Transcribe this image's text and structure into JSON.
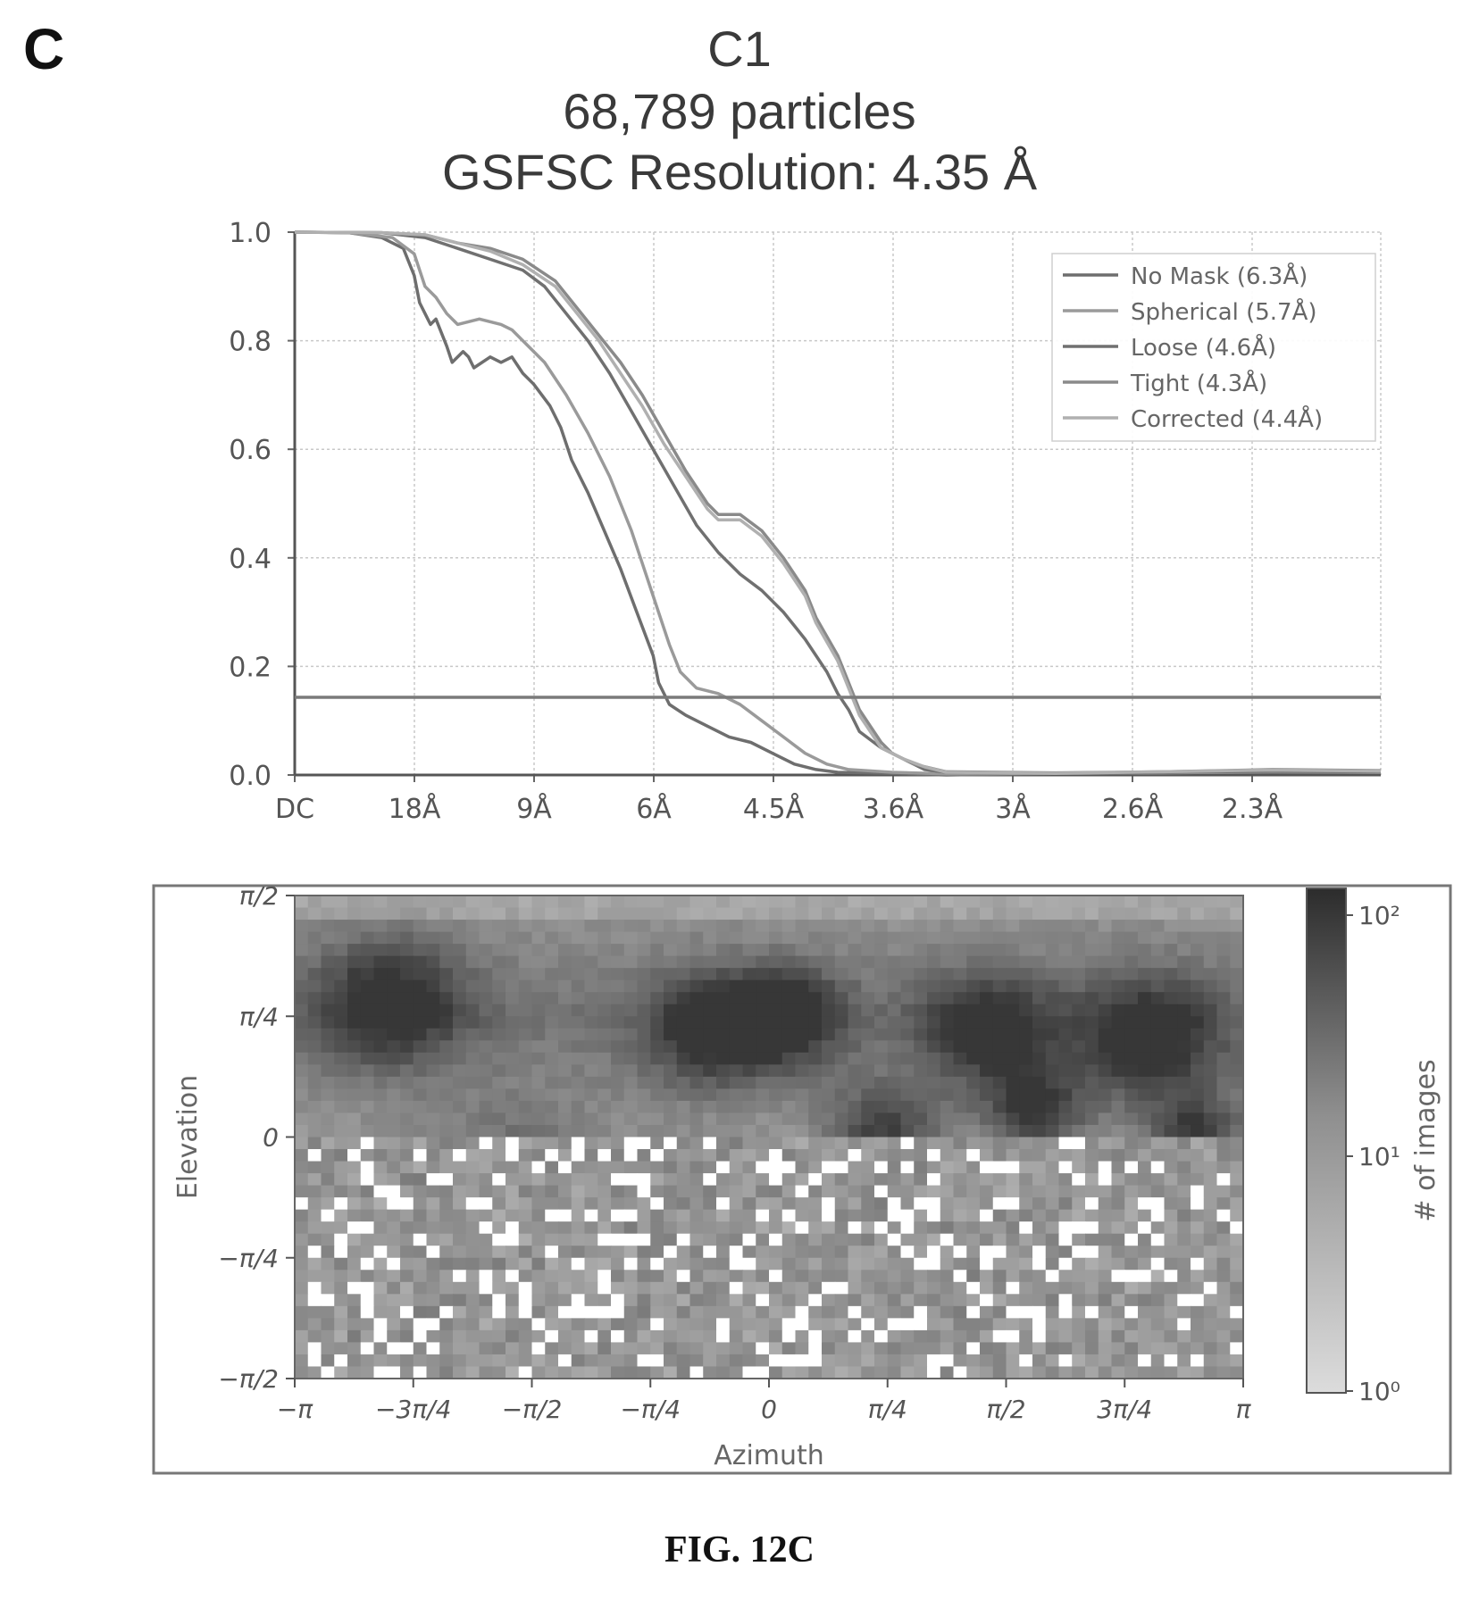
{
  "panel_letter": "C",
  "title_lines": [
    "C1",
    "68,789 particles",
    "GSFSC Resolution: 4.35 Å"
  ],
  "figure_label": "FIG. 12C",
  "chart_data": [
    {
      "type": "line",
      "ylim": [
        0,
        1.0
      ],
      "yticks": [
        0.0,
        0.2,
        0.4,
        0.6,
        0.8,
        1.0
      ],
      "ytick_labels": [
        "0.0",
        "0.2",
        "0.4",
        "0.6",
        "0.8",
        "1.0"
      ],
      "x_tick_labels": [
        "DC",
        "18Å",
        "9Å",
        "6Å",
        "4.5Å",
        "3.6Å",
        "3Å",
        "2.6Å",
        "2.3Å"
      ],
      "xlim": [
        0,
        1
      ],
      "grid": true,
      "legend_position": "top-right",
      "threshold": 0.143,
      "series": [
        {
          "name": "No Mask (6.3Å)",
          "color": "#6e6e6e",
          "points": [
            [
              0,
              1.0
            ],
            [
              0.05,
              0.999
            ],
            [
              0.08,
              0.99
            ],
            [
              0.1,
              0.97
            ],
            [
              0.11,
              0.92
            ],
            [
              0.115,
              0.87
            ],
            [
              0.12,
              0.85
            ],
            [
              0.125,
              0.83
            ],
            [
              0.13,
              0.84
            ],
            [
              0.14,
              0.79
            ],
            [
              0.145,
              0.76
            ],
            [
              0.155,
              0.78
            ],
            [
              0.16,
              0.77
            ],
            [
              0.165,
              0.75
            ],
            [
              0.18,
              0.77
            ],
            [
              0.19,
              0.76
            ],
            [
              0.2,
              0.77
            ],
            [
              0.21,
              0.74
            ],
            [
              0.22,
              0.72
            ],
            [
              0.235,
              0.68
            ],
            [
              0.245,
              0.64
            ],
            [
              0.255,
              0.58
            ],
            [
              0.27,
              0.52
            ],
            [
              0.285,
              0.45
            ],
            [
              0.3,
              0.38
            ],
            [
              0.315,
              0.3
            ],
            [
              0.33,
              0.22
            ],
            [
              0.335,
              0.17
            ],
            [
              0.345,
              0.13
            ],
            [
              0.36,
              0.11
            ],
            [
              0.38,
              0.09
            ],
            [
              0.4,
              0.07
            ],
            [
              0.42,
              0.06
            ],
            [
              0.44,
              0.04
            ],
            [
              0.46,
              0.02
            ],
            [
              0.48,
              0.01
            ],
            [
              0.5,
              0.005
            ],
            [
              0.55,
              0.003
            ],
            [
              0.6,
              0.0
            ],
            [
              0.7,
              0.003
            ],
            [
              0.8,
              0.004
            ],
            [
              0.9,
              0.005
            ],
            [
              1.0,
              0.005
            ]
          ]
        },
        {
          "name": "Spherical (5.7Å)",
          "color": "#9a9a9a",
          "points": [
            [
              0,
              1.0
            ],
            [
              0.05,
              0.999
            ],
            [
              0.09,
              0.99
            ],
            [
              0.11,
              0.96
            ],
            [
              0.12,
              0.9
            ],
            [
              0.13,
              0.88
            ],
            [
              0.14,
              0.85
            ],
            [
              0.15,
              0.83
            ],
            [
              0.17,
              0.84
            ],
            [
              0.19,
              0.83
            ],
            [
              0.2,
              0.82
            ],
            [
              0.21,
              0.8
            ],
            [
              0.23,
              0.76
            ],
            [
              0.25,
              0.7
            ],
            [
              0.27,
              0.63
            ],
            [
              0.29,
              0.55
            ],
            [
              0.31,
              0.45
            ],
            [
              0.33,
              0.33
            ],
            [
              0.345,
              0.24
            ],
            [
              0.355,
              0.19
            ],
            [
              0.37,
              0.16
            ],
            [
              0.39,
              0.15
            ],
            [
              0.41,
              0.13
            ],
            [
              0.43,
              0.1
            ],
            [
              0.45,
              0.07
            ],
            [
              0.47,
              0.04
            ],
            [
              0.49,
              0.02
            ],
            [
              0.51,
              0.01
            ],
            [
              0.55,
              0.005
            ],
            [
              0.6,
              0.002
            ],
            [
              0.7,
              0.003
            ],
            [
              0.8,
              0.004
            ],
            [
              0.9,
              0.006
            ],
            [
              1.0,
              0.005
            ]
          ]
        },
        {
          "name": "Loose (4.6Å)",
          "color": "#707070",
          "points": [
            [
              0,
              1.0
            ],
            [
              0.08,
              0.999
            ],
            [
              0.12,
              0.99
            ],
            [
              0.15,
              0.97
            ],
            [
              0.18,
              0.95
            ],
            [
              0.21,
              0.93
            ],
            [
              0.23,
              0.9
            ],
            [
              0.25,
              0.85
            ],
            [
              0.27,
              0.8
            ],
            [
              0.29,
              0.74
            ],
            [
              0.31,
              0.67
            ],
            [
              0.33,
              0.6
            ],
            [
              0.35,
              0.53
            ],
            [
              0.37,
              0.46
            ],
            [
              0.39,
              0.41
            ],
            [
              0.41,
              0.37
            ],
            [
              0.43,
              0.34
            ],
            [
              0.45,
              0.3
            ],
            [
              0.47,
              0.25
            ],
            [
              0.49,
              0.19
            ],
            [
              0.5,
              0.15
            ],
            [
              0.51,
              0.12
            ],
            [
              0.52,
              0.08
            ],
            [
              0.54,
              0.05
            ],
            [
              0.56,
              0.03
            ],
            [
              0.58,
              0.01
            ],
            [
              0.6,
              0.005
            ],
            [
              0.7,
              0.003
            ],
            [
              0.8,
              0.005
            ],
            [
              0.9,
              0.007
            ],
            [
              1.0,
              0.006
            ]
          ]
        },
        {
          "name": "Tight (4.3Å)",
          "color": "#8a8a8a",
          "points": [
            [
              0,
              1.0
            ],
            [
              0.08,
              0.999
            ],
            [
              0.12,
              0.995
            ],
            [
              0.15,
              0.98
            ],
            [
              0.18,
              0.97
            ],
            [
              0.21,
              0.95
            ],
            [
              0.24,
              0.91
            ],
            [
              0.26,
              0.86
            ],
            [
              0.28,
              0.81
            ],
            [
              0.3,
              0.76
            ],
            [
              0.32,
              0.7
            ],
            [
              0.34,
              0.63
            ],
            [
              0.36,
              0.56
            ],
            [
              0.38,
              0.5
            ],
            [
              0.39,
              0.48
            ],
            [
              0.41,
              0.48
            ],
            [
              0.43,
              0.45
            ],
            [
              0.45,
              0.4
            ],
            [
              0.47,
              0.34
            ],
            [
              0.48,
              0.29
            ],
            [
              0.5,
              0.22
            ],
            [
              0.51,
              0.17
            ],
            [
              0.52,
              0.12
            ],
            [
              0.53,
              0.09
            ],
            [
              0.54,
              0.06
            ],
            [
              0.55,
              0.04
            ],
            [
              0.57,
              0.02
            ],
            [
              0.6,
              0.006
            ],
            [
              0.7,
              0.004
            ],
            [
              0.8,
              0.006
            ],
            [
              0.9,
              0.01
            ],
            [
              1.0,
              0.008
            ]
          ]
        },
        {
          "name": "Corrected (4.4Å)",
          "color": "#b0b0b0",
          "points": [
            [
              0,
              1.0
            ],
            [
              0.08,
              0.999
            ],
            [
              0.12,
              0.995
            ],
            [
              0.15,
              0.98
            ],
            [
              0.18,
              0.965
            ],
            [
              0.21,
              0.94
            ],
            [
              0.24,
              0.9
            ],
            [
              0.26,
              0.85
            ],
            [
              0.28,
              0.8
            ],
            [
              0.3,
              0.74
            ],
            [
              0.32,
              0.68
            ],
            [
              0.34,
              0.61
            ],
            [
              0.36,
              0.55
            ],
            [
              0.38,
              0.49
            ],
            [
              0.39,
              0.47
            ],
            [
              0.41,
              0.47
            ],
            [
              0.43,
              0.44
            ],
            [
              0.45,
              0.39
            ],
            [
              0.47,
              0.33
            ],
            [
              0.48,
              0.28
            ],
            [
              0.5,
              0.21
            ],
            [
              0.51,
              0.16
            ],
            [
              0.52,
              0.11
            ],
            [
              0.53,
              0.08
            ],
            [
              0.54,
              0.05
            ],
            [
              0.56,
              0.03
            ],
            [
              0.58,
              0.015
            ],
            [
              0.6,
              0.005
            ],
            [
              0.7,
              0.003
            ],
            [
              0.8,
              0.006
            ],
            [
              0.9,
              0.009
            ],
            [
              1.0,
              0.007
            ]
          ]
        }
      ]
    },
    {
      "type": "heatmap",
      "xlabel": "Azimuth",
      "ylabel": "Elevation",
      "x_tick_labels": [
        "−π",
        "−3π/4",
        "−π/2",
        "−π/4",
        "0",
        "π/4",
        "π/2",
        "3π/4",
        "π"
      ],
      "y_tick_labels": [
        "π/2",
        "π/4",
        "0",
        "−π/4",
        "−π/2"
      ],
      "colorbar_label": "# of images",
      "colorbar_scale": "log",
      "colorbar_tick_labels": [
        "10²",
        "10¹",
        "10⁰"
      ]
    }
  ]
}
